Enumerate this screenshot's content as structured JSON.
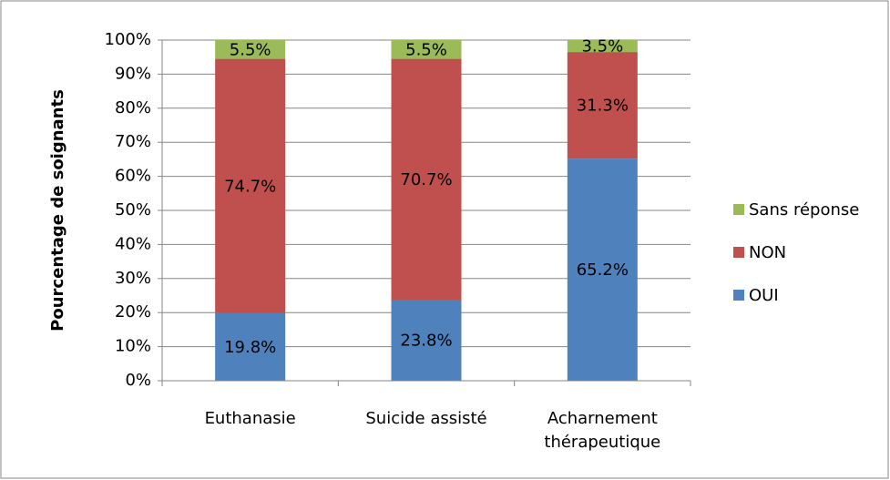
{
  "chart_data": {
    "type": "stacked_bar",
    "y_label": "Pourcentage de soignants",
    "categories": [
      "Euthanasie",
      "Suicide assisté",
      "Acharnement thérapeutique"
    ],
    "series": [
      {
        "name": "OUI",
        "color": "#4f81bd",
        "values": [
          19.8,
          23.8,
          65.2
        ],
        "value_labels": [
          "19.8%",
          "23.8%",
          "65.2%"
        ]
      },
      {
        "name": "NON",
        "color": "#c0504d",
        "values": [
          74.7,
          70.7,
          31.3
        ],
        "value_labels": [
          "74.7%",
          "70.7%",
          "31.3%"
        ]
      },
      {
        "name": "Sans réponse",
        "color": "#9bbb59",
        "values": [
          5.5,
          5.5,
          3.5
        ],
        "value_labels": [
          "5.5%",
          "5.5%",
          "3.5%"
        ]
      }
    ],
    "ylim": [
      0,
      100
    ],
    "yticks": [
      {
        "value": 0,
        "label": "0%"
      },
      {
        "value": 10,
        "label": "10%"
      },
      {
        "value": 20,
        "label": "20%"
      },
      {
        "value": 30,
        "label": "30%"
      },
      {
        "value": 40,
        "label": "40%"
      },
      {
        "value": 50,
        "label": "50%"
      },
      {
        "value": 60,
        "label": "60%"
      },
      {
        "value": 70,
        "label": "70%"
      },
      {
        "value": 80,
        "label": "80%"
      },
      {
        "value": 90,
        "label": "90%"
      },
      {
        "value": 100,
        "label": "100%"
      }
    ],
    "grid": true,
    "legend": "right"
  }
}
